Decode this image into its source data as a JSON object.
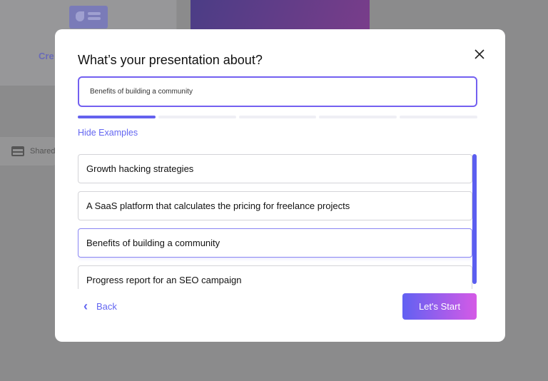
{
  "background": {
    "create_label": "Cre",
    "shared_label": "Shared"
  },
  "modal": {
    "title": "What’s your presentation about?",
    "input_value": "Benefits of building a community",
    "progress": {
      "steps": 5,
      "current": 1
    },
    "hide_examples_label": "Hide Examples",
    "examples": [
      "Growth hacking strategies",
      "A SaaS platform that calculates the pricing for freelance projects",
      "Benefits of building a community",
      "Progress report for an SEO campaign"
    ],
    "selected_example": 2,
    "back_label": "Back",
    "back_icon": "‹",
    "start_label": "Let's Start",
    "accent": "#6366f1"
  }
}
